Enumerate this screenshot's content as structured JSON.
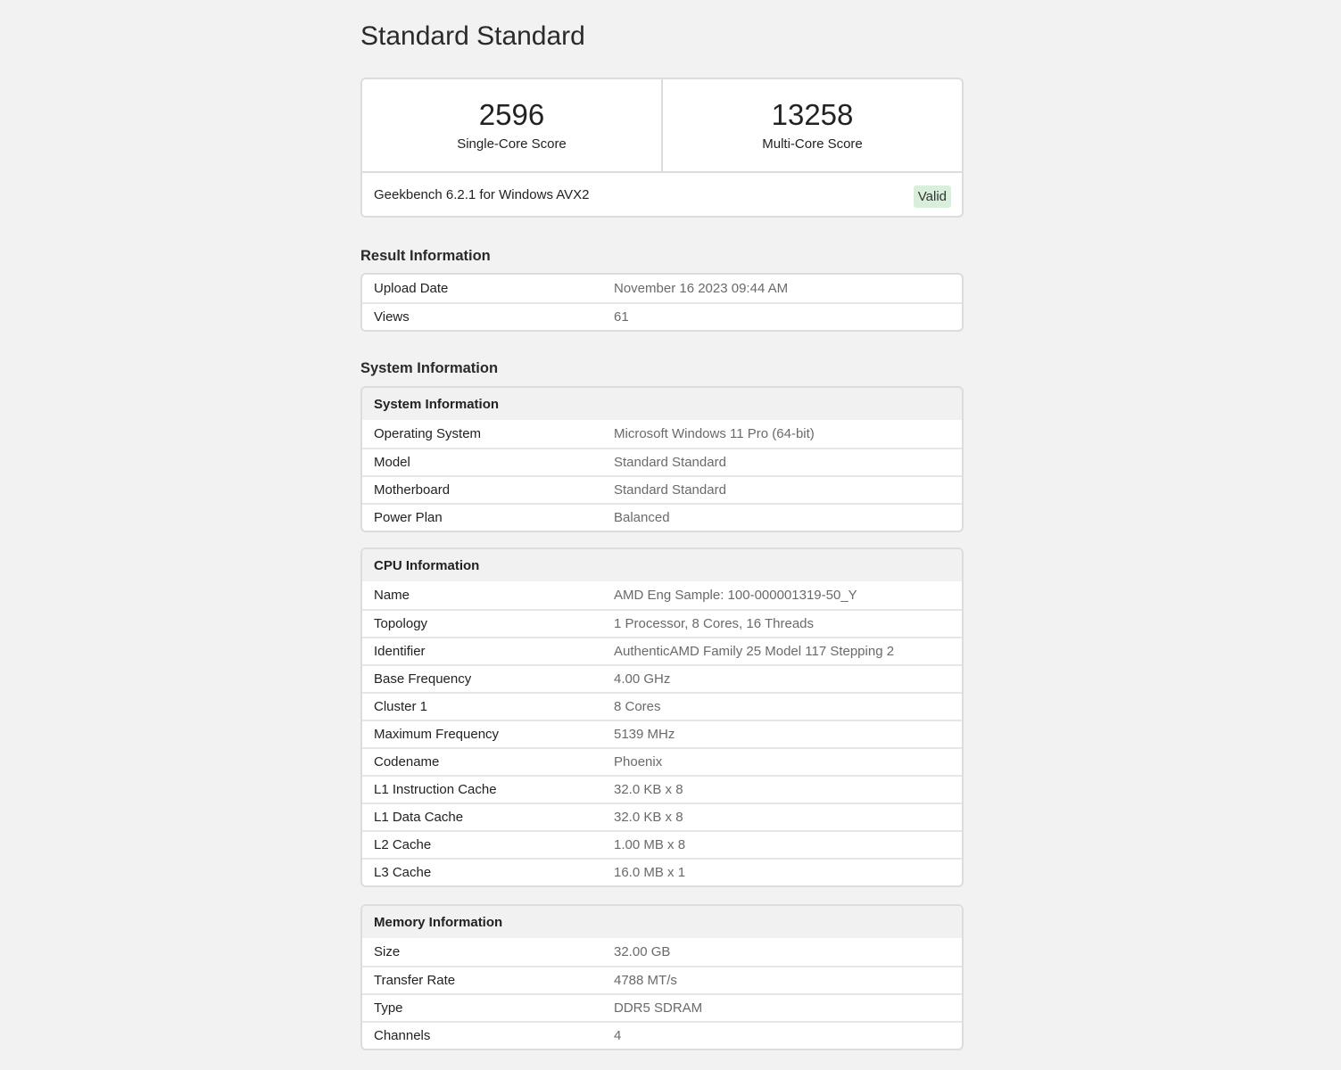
{
  "title": "Standard Standard",
  "scores": {
    "single": {
      "value": "2596",
      "label": "Single-Core Score"
    },
    "multi": {
      "value": "13258",
      "label": "Multi-Core Score"
    },
    "version": "Geekbench 6.2.1 for Windows AVX2",
    "status": "Valid",
    "status_color": "#d9efdc"
  },
  "result": {
    "heading": "Result Information",
    "rows": [
      {
        "k": "Upload Date",
        "v": "November 16 2023 09:44 AM"
      },
      {
        "k": "Views",
        "v": "61"
      }
    ]
  },
  "system_heading": "System Information",
  "system": {
    "header": "System Information",
    "rows": [
      {
        "k": "Operating System",
        "v": "Microsoft Windows 11 Pro (64-bit)"
      },
      {
        "k": "Model",
        "v": "Standard Standard"
      },
      {
        "k": "Motherboard",
        "v": "Standard Standard"
      },
      {
        "k": "Power Plan",
        "v": "Balanced"
      }
    ]
  },
  "cpu": {
    "header": "CPU Information",
    "rows": [
      {
        "k": "Name",
        "v": "AMD Eng Sample: 100-000001319-50_Y"
      },
      {
        "k": "Topology",
        "v": "1 Processor, 8 Cores, 16 Threads"
      },
      {
        "k": "Identifier",
        "v": "AuthenticAMD Family 25 Model 117 Stepping 2"
      },
      {
        "k": "Base Frequency",
        "v": "4.00 GHz"
      },
      {
        "k": "Cluster 1",
        "v": "8 Cores"
      },
      {
        "k": "Maximum Frequency",
        "v": "5139 MHz"
      },
      {
        "k": "Codename",
        "v": "Phoenix"
      },
      {
        "k": "L1 Instruction Cache",
        "v": "32.0 KB x 8"
      },
      {
        "k": "L1 Data Cache",
        "v": "32.0 KB x 8"
      },
      {
        "k": "L2 Cache",
        "v": "1.00 MB x 8"
      },
      {
        "k": "L3 Cache",
        "v": "16.0 MB x 1"
      }
    ]
  },
  "memory": {
    "header": "Memory Information",
    "rows": [
      {
        "k": "Size",
        "v": "32.00 GB"
      },
      {
        "k": "Transfer Rate",
        "v": "4788 MT/s"
      },
      {
        "k": "Type",
        "v": "DDR5 SDRAM"
      },
      {
        "k": "Channels",
        "v": "4"
      }
    ]
  }
}
